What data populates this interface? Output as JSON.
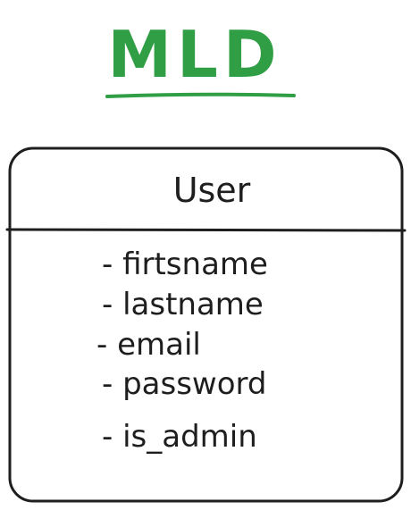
{
  "title": "MLD",
  "entity": {
    "name": "User",
    "attributes": [
      "- firtsname",
      "- lastname",
      "- email",
      "- password",
      "- is_admin"
    ]
  },
  "colors": {
    "title": "#2f9e44",
    "stroke": "#1e1e1e",
    "background": "#ffffff"
  }
}
